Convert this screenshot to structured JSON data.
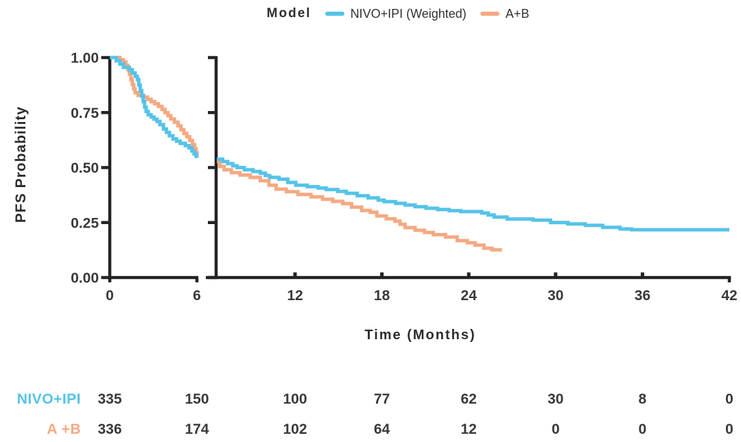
{
  "legend": {
    "title": "Model",
    "items": [
      {
        "label": "NIVO+IPI (Weighted)",
        "color": "#56C3E8"
      },
      {
        "label": "A+B",
        "color": "#F5A983"
      }
    ]
  },
  "colors": {
    "nivo_ipi": "#56C3E8",
    "a_plus_b": "#F5A983",
    "axis": "#262223",
    "tick_text": "#3a3839"
  },
  "chart_data": {
    "type": "line",
    "subtype": "kaplan-meier-step",
    "title": "",
    "xlabel": "Time (Months)",
    "ylabel": "PFS Probability",
    "axis_break_between": [
      6,
      7
    ],
    "x_ticks_left": [
      0,
      6
    ],
    "x_ticks_right": [
      12,
      18,
      24,
      30,
      36,
      42
    ],
    "y_ticks": [
      {
        "v": 1.0,
        "label": "1.00"
      },
      {
        "v": 0.75,
        "label": "0.75"
      },
      {
        "v": 0.5,
        "label": "0.50"
      },
      {
        "v": 0.25,
        "label": "0.25"
      },
      {
        "v": 0.0,
        "label": "0.00"
      }
    ],
    "xlim_left": [
      0,
      6
    ],
    "xlim_right": [
      6.4,
      42
    ],
    "ylim": [
      0,
      1
    ],
    "legend_position": "top",
    "grid": false,
    "series": [
      {
        "name": "NIVO+IPI (Weighted)",
        "color": "#56C3E8",
        "left_segment": [
          [
            0,
            1.0
          ],
          [
            0.45,
            0.985
          ],
          [
            0.7,
            0.97
          ],
          [
            0.95,
            0.955
          ],
          [
            1.35,
            0.945
          ],
          [
            1.55,
            0.93
          ],
          [
            1.75,
            0.915
          ],
          [
            1.9,
            0.9
          ],
          [
            2.0,
            0.875
          ],
          [
            2.1,
            0.85
          ],
          [
            2.2,
            0.825
          ],
          [
            2.3,
            0.8
          ],
          [
            2.4,
            0.775
          ],
          [
            2.5,
            0.755
          ],
          [
            2.65,
            0.74
          ],
          [
            2.85,
            0.73
          ],
          [
            3.05,
            0.72
          ],
          [
            3.25,
            0.71
          ],
          [
            3.45,
            0.695
          ],
          [
            3.7,
            0.675
          ],
          [
            3.9,
            0.66
          ],
          [
            4.1,
            0.645
          ],
          [
            4.35,
            0.63
          ],
          [
            4.6,
            0.62
          ],
          [
            4.85,
            0.61
          ],
          [
            5.2,
            0.6
          ],
          [
            5.45,
            0.59
          ],
          [
            5.65,
            0.575
          ],
          [
            5.8,
            0.562
          ],
          [
            5.95,
            0.55
          ],
          [
            6.0,
            0.545
          ]
        ],
        "right_segment": [
          [
            6.6,
            0.538
          ],
          [
            7.0,
            0.527
          ],
          [
            7.35,
            0.518
          ],
          [
            7.7,
            0.508
          ],
          [
            8.0,
            0.5
          ],
          [
            8.5,
            0.49
          ],
          [
            9.1,
            0.482
          ],
          [
            9.6,
            0.474
          ],
          [
            9.95,
            0.464
          ],
          [
            10.25,
            0.455
          ],
          [
            10.9,
            0.447
          ],
          [
            11.5,
            0.432
          ],
          [
            12.05,
            0.42
          ],
          [
            12.85,
            0.413
          ],
          [
            13.6,
            0.407
          ],
          [
            14.15,
            0.4
          ],
          [
            14.95,
            0.392
          ],
          [
            15.55,
            0.383
          ],
          [
            16.3,
            0.372
          ],
          [
            17.05,
            0.362
          ],
          [
            17.75,
            0.352
          ],
          [
            18.15,
            0.345
          ],
          [
            18.95,
            0.337
          ],
          [
            19.6,
            0.33
          ],
          [
            20.3,
            0.322
          ],
          [
            21.05,
            0.315
          ],
          [
            21.85,
            0.309
          ],
          [
            22.65,
            0.304
          ],
          [
            23.45,
            0.3
          ],
          [
            24.9,
            0.293
          ],
          [
            25.35,
            0.284
          ],
          [
            25.75,
            0.275
          ],
          [
            26.65,
            0.266
          ],
          [
            28.45,
            0.261
          ],
          [
            29.65,
            0.25
          ],
          [
            30.85,
            0.244
          ],
          [
            32.05,
            0.237
          ],
          [
            33.25,
            0.228
          ],
          [
            34.45,
            0.221
          ],
          [
            35.25,
            0.217
          ],
          [
            42,
            0.217
          ]
        ]
      },
      {
        "name": "A+B",
        "color": "#F5A983",
        "left_segment": [
          [
            0,
            1.0
          ],
          [
            0.7,
            0.99
          ],
          [
            0.95,
            0.98
          ],
          [
            1.1,
            0.965
          ],
          [
            1.25,
            0.945
          ],
          [
            1.35,
            0.925
          ],
          [
            1.45,
            0.9
          ],
          [
            1.55,
            0.878
          ],
          [
            1.65,
            0.857
          ],
          [
            1.75,
            0.84
          ],
          [
            1.95,
            0.828
          ],
          [
            2.35,
            0.82
          ],
          [
            2.6,
            0.81
          ],
          [
            2.85,
            0.8
          ],
          [
            3.1,
            0.79
          ],
          [
            3.35,
            0.778
          ],
          [
            3.6,
            0.764
          ],
          [
            3.8,
            0.75
          ],
          [
            4.0,
            0.736
          ],
          [
            4.2,
            0.721
          ],
          [
            4.45,
            0.706
          ],
          [
            4.7,
            0.69
          ],
          [
            4.9,
            0.672
          ],
          [
            5.1,
            0.655
          ],
          [
            5.3,
            0.64
          ],
          [
            5.5,
            0.623
          ],
          [
            5.7,
            0.604
          ],
          [
            5.85,
            0.585
          ],
          [
            5.95,
            0.568
          ],
          [
            6.0,
            0.557
          ]
        ],
        "right_segment": [
          [
            6.6,
            0.527
          ],
          [
            6.8,
            0.505
          ],
          [
            7.1,
            0.49
          ],
          [
            7.6,
            0.477
          ],
          [
            8.2,
            0.466
          ],
          [
            8.9,
            0.455
          ],
          [
            9.6,
            0.44
          ],
          [
            10.2,
            0.42
          ],
          [
            10.7,
            0.402
          ],
          [
            11.4,
            0.39
          ],
          [
            12.2,
            0.378
          ],
          [
            13.1,
            0.367
          ],
          [
            13.9,
            0.356
          ],
          [
            14.6,
            0.346
          ],
          [
            15.3,
            0.336
          ],
          [
            15.9,
            0.32
          ],
          [
            16.6,
            0.305
          ],
          [
            17.2,
            0.297
          ],
          [
            17.65,
            0.28
          ],
          [
            18.3,
            0.267
          ],
          [
            18.9,
            0.256
          ],
          [
            19.25,
            0.242
          ],
          [
            19.6,
            0.227
          ],
          [
            20.3,
            0.215
          ],
          [
            20.95,
            0.205
          ],
          [
            21.55,
            0.195
          ],
          [
            22.4,
            0.184
          ],
          [
            23.2,
            0.168
          ],
          [
            23.9,
            0.158
          ],
          [
            24.45,
            0.147
          ],
          [
            25.05,
            0.133
          ],
          [
            25.6,
            0.126
          ],
          [
            26.3,
            0.126
          ]
        ]
      }
    ]
  },
  "risk_table": {
    "times": [
      0,
      6,
      12,
      18,
      24,
      30,
      36,
      42
    ],
    "rows": [
      {
        "label": "NIVO+IPI",
        "color": "#56C3E8",
        "values": [
          "335",
          "150",
          "100",
          "77",
          "62",
          "30",
          "8",
          "0"
        ]
      },
      {
        "label": "A +B",
        "color": "#F5A983",
        "values": [
          "336",
          "174",
          "102",
          "64",
          "12",
          "0",
          "0",
          "0"
        ]
      }
    ]
  }
}
